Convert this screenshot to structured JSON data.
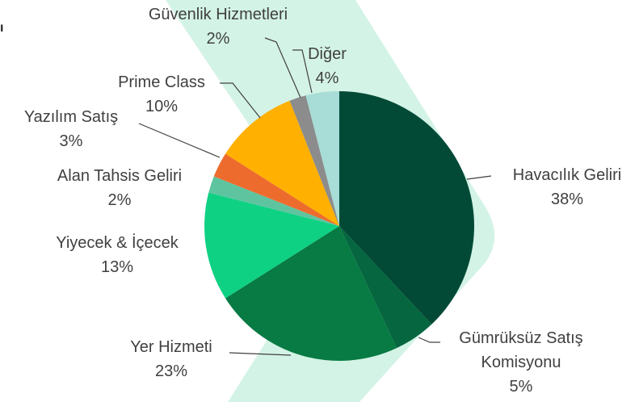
{
  "chart_data": {
    "type": "pie",
    "title": "ı",
    "categories": [
      "Havacılık Geliri",
      "Gümrüksüz Satış Komisyonu",
      "Yer Hizmeti",
      "Yiyecek & İçecek",
      "Alan Tahsis Geliri",
      "Yazılım Satış",
      "Prime Class",
      "Güvenlik Hizmetleri",
      "Diğer"
    ],
    "values": [
      38,
      5,
      23,
      13,
      2,
      3,
      10,
      2,
      4
    ],
    "value_labels": [
      "38%",
      "5%",
      "23%",
      "13%",
      "2%",
      "3%",
      "10%",
      "2%",
      "4%"
    ],
    "colors": [
      "#034a36",
      "#05663f",
      "#087a43",
      "#0fd184",
      "#5ec4a0",
      "#ee6b2e",
      "#ffb000",
      "#8c8c8c",
      "#a8dcd6"
    ]
  }
}
